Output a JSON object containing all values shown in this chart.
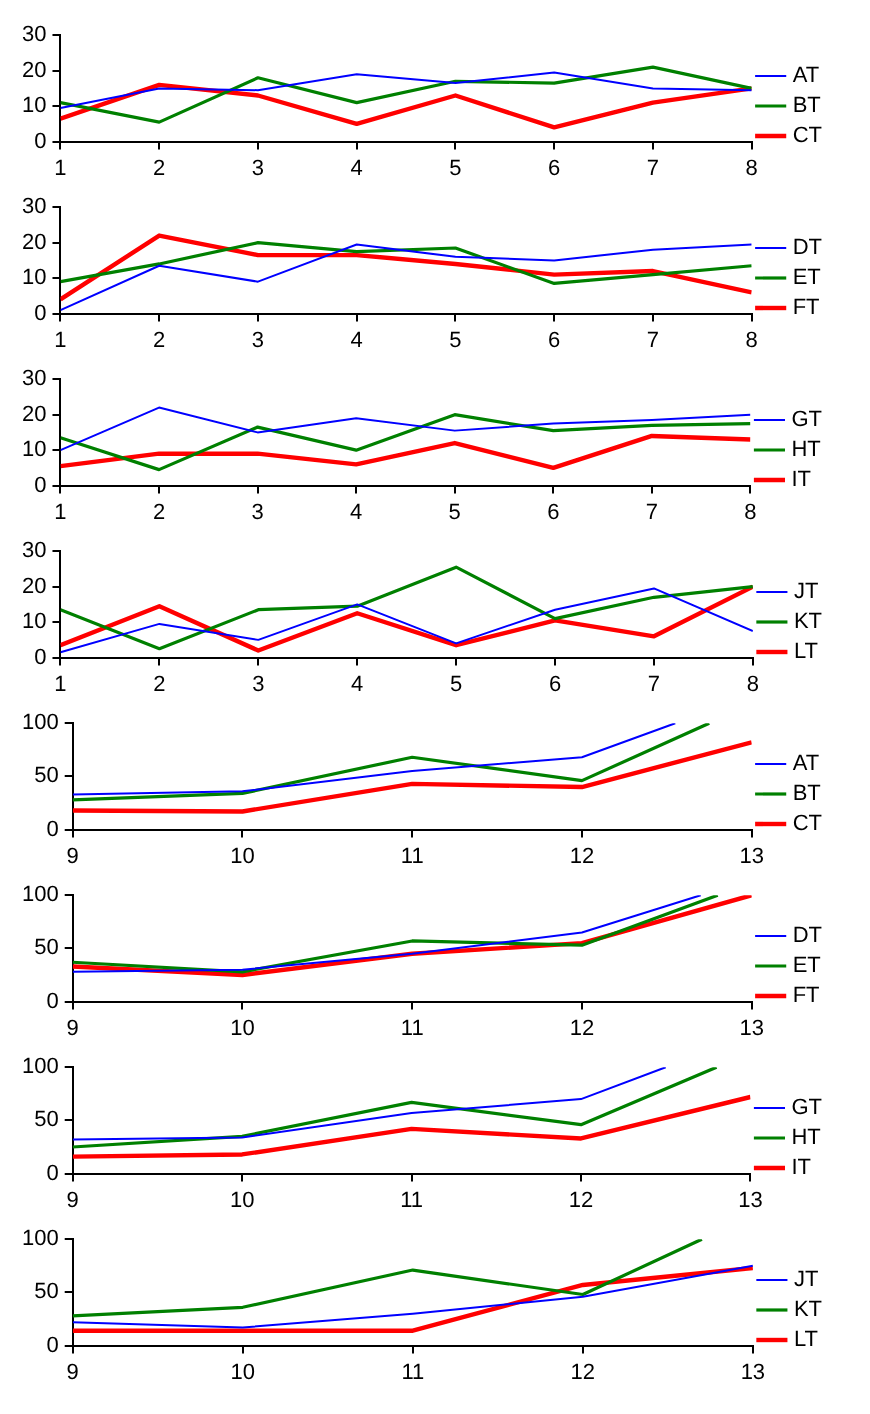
{
  "chart_data": [
    {
      "type": "line",
      "x": [
        1,
        2,
        3,
        4,
        5,
        6,
        7,
        8
      ],
      "xlim": [
        1,
        8
      ],
      "ylim": [
        0,
        30
      ],
      "xticks": [
        1,
        2,
        3,
        4,
        5,
        6,
        7,
        8
      ],
      "yticks": [
        0,
        10,
        20,
        30
      ],
      "legend": "right",
      "series": [
        {
          "name": "AT",
          "color": "#0000ff",
          "values": [
            9.5,
            15,
            14.5,
            19,
            16.5,
            19.5,
            15,
            14.5
          ]
        },
        {
          "name": "BT",
          "color": "#008000",
          "values": [
            11,
            5.5,
            18,
            11,
            17,
            16.5,
            21,
            15
          ]
        },
        {
          "name": "CT",
          "color": "#ff0000",
          "values": [
            6.5,
            16,
            13,
            5,
            13,
            4,
            11,
            15
          ]
        }
      ]
    },
    {
      "type": "line",
      "x": [
        1,
        2,
        3,
        4,
        5,
        6,
        7,
        8
      ],
      "xlim": [
        1,
        8
      ],
      "ylim": [
        0,
        30
      ],
      "xticks": [
        1,
        2,
        3,
        4,
        5,
        6,
        7,
        8
      ],
      "yticks": [
        0,
        10,
        20,
        30
      ],
      "legend": "right",
      "series": [
        {
          "name": "DT",
          "color": "#0000ff",
          "values": [
            1,
            13.5,
            9,
            19.5,
            16,
            15,
            18,
            19.5
          ]
        },
        {
          "name": "ET",
          "color": "#008000",
          "values": [
            9,
            14,
            20,
            17.5,
            18.5,
            8.5,
            11,
            13.5
          ]
        },
        {
          "name": "FT",
          "color": "#ff0000",
          "values": [
            4,
            22,
            16.5,
            16.5,
            14,
            11,
            12,
            6
          ]
        }
      ]
    },
    {
      "type": "line",
      "x": [
        1,
        2,
        3,
        4,
        5,
        6,
        7,
        8
      ],
      "xlim": [
        1,
        8
      ],
      "ylim": [
        0,
        30
      ],
      "xticks": [
        1,
        2,
        3,
        4,
        5,
        6,
        7,
        8
      ],
      "yticks": [
        0,
        10,
        20,
        30
      ],
      "legend": "right",
      "series": [
        {
          "name": "GT",
          "color": "#0000ff",
          "values": [
            10,
            22,
            15,
            19,
            15.5,
            17.5,
            18.5,
            20
          ]
        },
        {
          "name": "HT",
          "color": "#008000",
          "values": [
            13.5,
            4.5,
            16.5,
            10,
            20,
            15.5,
            17,
            17.5
          ]
        },
        {
          "name": "IT",
          "color": "#ff0000",
          "values": [
            5.5,
            9,
            9,
            6,
            12,
            5,
            14,
            13
          ]
        }
      ]
    },
    {
      "type": "line",
      "x": [
        1,
        2,
        3,
        4,
        5,
        6,
        7,
        8
      ],
      "xlim": [
        1,
        8
      ],
      "ylim": [
        0,
        30
      ],
      "xticks": [
        1,
        2,
        3,
        4,
        5,
        6,
        7,
        8
      ],
      "yticks": [
        0,
        10,
        20,
        30
      ],
      "legend": "right",
      "series": [
        {
          "name": "JT",
          "color": "#0000ff",
          "values": [
            1.5,
            9.5,
            5,
            15,
            4,
            13.5,
            19.5,
            7.5
          ]
        },
        {
          "name": "KT",
          "color": "#008000",
          "values": [
            13.5,
            2.5,
            13.5,
            14.5,
            25.5,
            11,
            17,
            20
          ]
        },
        {
          "name": "LT",
          "color": "#ff0000",
          "values": [
            3.5,
            14.5,
            2,
            12.5,
            3.5,
            10.5,
            6,
            20
          ]
        }
      ]
    },
    {
      "type": "line",
      "xlim": [
        9,
        13
      ],
      "ylim": [
        0,
        100
      ],
      "xticks": [
        9,
        10,
        11,
        12,
        13
      ],
      "yticks": [
        0,
        50,
        100
      ],
      "legend": "right",
      "series": [
        {
          "name": "AT",
          "color": "#0000ff",
          "x": [
            9,
            10,
            11,
            12,
            12.55
          ],
          "values": [
            33,
            36,
            55,
            68,
            100
          ]
        },
        {
          "name": "BT",
          "color": "#008000",
          "x": [
            9,
            10,
            11,
            12,
            12.75
          ],
          "values": [
            28,
            34,
            68,
            46,
            100
          ]
        },
        {
          "name": "CT",
          "color": "#ff0000",
          "x": [
            9,
            10,
            11,
            12,
            13
          ],
          "values": [
            18,
            17,
            43,
            40,
            82
          ]
        }
      ]
    },
    {
      "type": "line",
      "xlim": [
        9,
        13
      ],
      "ylim": [
        0,
        100
      ],
      "xticks": [
        9,
        10,
        11,
        12,
        13
      ],
      "yticks": [
        0,
        50,
        100
      ],
      "legend": "right",
      "series": [
        {
          "name": "DT",
          "color": "#0000ff",
          "x": [
            9,
            10,
            11,
            12,
            12.7
          ],
          "values": [
            28,
            30,
            45,
            65,
            100
          ]
        },
        {
          "name": "ET",
          "color": "#008000",
          "x": [
            9,
            10,
            11,
            12,
            12.8
          ],
          "values": [
            37,
            28,
            57,
            53,
            100
          ]
        },
        {
          "name": "FT",
          "color": "#ff0000",
          "x": [
            9,
            10,
            11,
            12,
            13
          ],
          "values": [
            33,
            25,
            45,
            55,
            100
          ]
        }
      ]
    },
    {
      "type": "line",
      "xlim": [
        9,
        13
      ],
      "ylim": [
        0,
        100
      ],
      "xticks": [
        9,
        10,
        11,
        12,
        13
      ],
      "yticks": [
        0,
        50,
        100
      ],
      "legend": "right",
      "series": [
        {
          "name": "GT",
          "color": "#0000ff",
          "x": [
            9,
            10,
            11,
            12,
            12.5
          ],
          "values": [
            32,
            34,
            57,
            70,
            100
          ]
        },
        {
          "name": "HT",
          "color": "#008000",
          "x": [
            9,
            10,
            11,
            12,
            12.8
          ],
          "values": [
            25,
            35,
            67,
            46,
            100
          ]
        },
        {
          "name": "IT",
          "color": "#ff0000",
          "x": [
            9,
            10,
            11,
            12,
            13
          ],
          "values": [
            16,
            18,
            42,
            33,
            72
          ]
        }
      ]
    },
    {
      "type": "line",
      "xlim": [
        9,
        13
      ],
      "ylim": [
        0,
        100
      ],
      "xticks": [
        9,
        10,
        11,
        12,
        13
      ],
      "yticks": [
        0,
        50,
        100
      ],
      "legend": "right",
      "series": [
        {
          "name": "JT",
          "color": "#0000ff",
          "x": [
            9,
            10,
            11,
            12,
            13
          ],
          "values": [
            22,
            17,
            30,
            46,
            75
          ]
        },
        {
          "name": "KT",
          "color": "#008000",
          "x": [
            9,
            10,
            11,
            12,
            12.7
          ],
          "values": [
            28,
            36,
            71,
            48,
            100
          ]
        },
        {
          "name": "LT",
          "color": "#ff0000",
          "x": [
            9,
            10,
            11,
            12,
            13
          ],
          "values": [
            14,
            14,
            14,
            57,
            73
          ]
        }
      ]
    }
  ]
}
